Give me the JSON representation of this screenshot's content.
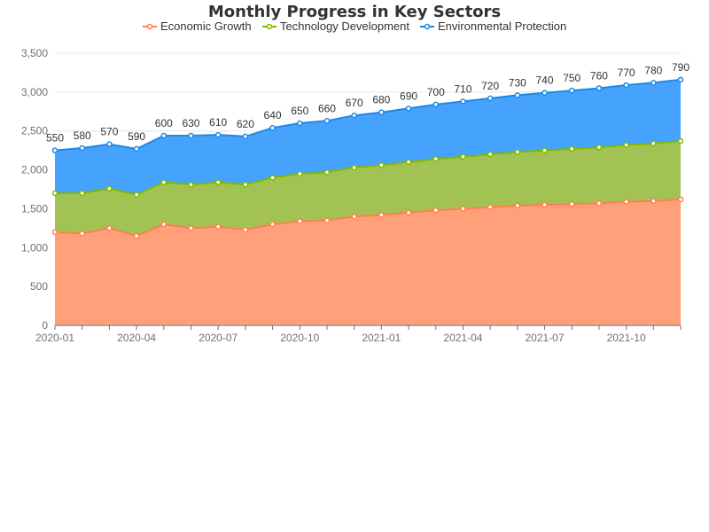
{
  "chart_data": {
    "type": "area",
    "stacked": true,
    "title": "Monthly Progress in Key Sectors",
    "legend_position": "top-center",
    "grid": true,
    "x": [
      "2020-01",
      "2020-02",
      "2020-03",
      "2020-04",
      "2020-05",
      "2020-06",
      "2020-07",
      "2020-08",
      "2020-09",
      "2020-10",
      "2020-11",
      "2020-12",
      "2021-01",
      "2021-02",
      "2021-03",
      "2021-04",
      "2021-05",
      "2021-06",
      "2021-07",
      "2021-08",
      "2021-09",
      "2021-10",
      "2021-11",
      "2021-12"
    ],
    "x_tick_labels": [
      "2020-01",
      "2020-04",
      "2020-07",
      "2020-10",
      "2021-01",
      "2021-04",
      "2021-07",
      "2021-10"
    ],
    "ylim": [
      0,
      3500
    ],
    "y_ticks": [
      0,
      500,
      1000,
      1500,
      2000,
      2500,
      3000,
      3500
    ],
    "y_tick_labels": [
      "0",
      "500",
      "1,000",
      "1,500",
      "2,000",
      "2,500",
      "3,000",
      "3,500"
    ],
    "series": [
      {
        "name": "Economic Growth",
        "color": "#ff7f50",
        "fill": "#ffa07a",
        "values": [
          1200,
          1180,
          1250,
          1150,
          1300,
          1250,
          1270,
          1230,
          1300,
          1340,
          1350,
          1400,
          1420,
          1450,
          1480,
          1500,
          1520,
          1540,
          1550,
          1560,
          1570,
          1590,
          1600,
          1620
        ]
      },
      {
        "name": "Technology Development",
        "color": "#7fb800",
        "fill": "#a2c354",
        "values": [
          500,
          520,
          510,
          530,
          540,
          560,
          570,
          580,
          600,
          610,
          620,
          630,
          640,
          650,
          660,
          670,
          680,
          690,
          700,
          710,
          720,
          730,
          740,
          750
        ]
      },
      {
        "name": "Environmental Protection",
        "color": "#1e88e5",
        "fill": "#46a3fd",
        "values": [
          550,
          580,
          570,
          590,
          600,
          630,
          610,
          620,
          640,
          650,
          660,
          670,
          680,
          690,
          700,
          710,
          720,
          730,
          740,
          750,
          760,
          770,
          780,
          790
        ]
      }
    ]
  }
}
